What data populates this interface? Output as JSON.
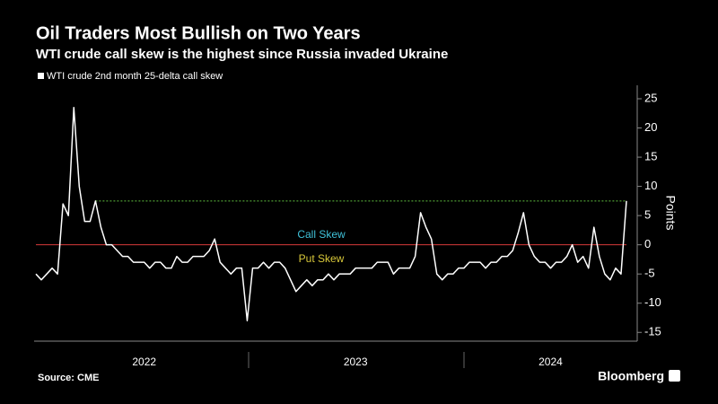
{
  "chart_data": {
    "type": "line",
    "title": "Oil Traders Most Bullish on Two Years",
    "subtitle": "WTI crude call skew is the highest since Russia invaded Ukraine",
    "y_label": "Points",
    "source": "Source: CME",
    "brand": "Bloomberg",
    "annotations": [
      {
        "text": "Call Skew",
        "color": "#3fc1d8"
      },
      {
        "text": "Put Skew",
        "color": "#d8c83a"
      }
    ],
    "reference_lines": [
      {
        "value": 0,
        "color": "#d83a3a"
      },
      {
        "value": 7.5,
        "color": "#5fbf3f"
      }
    ],
    "categories": [
      null,
      null,
      null,
      null,
      null,
      null,
      null,
      null,
      null,
      null,
      null,
      null,
      null,
      null,
      null,
      null,
      null,
      null,
      null,
      null,
      "2022",
      null,
      null,
      null,
      null,
      null,
      null,
      null,
      null,
      null,
      null,
      null,
      null,
      null,
      null,
      null,
      null,
      null,
      null,
      null,
      null,
      null,
      null,
      null,
      null,
      null,
      null,
      null,
      null,
      null,
      null,
      null,
      null,
      null,
      null,
      null,
      null,
      null,
      null,
      "2023",
      null,
      null,
      null,
      null,
      null,
      null,
      null,
      null,
      null,
      null,
      null,
      null,
      null,
      null,
      null,
      null,
      null,
      null,
      null,
      null,
      null,
      null,
      null,
      null,
      null,
      null,
      null,
      null,
      null,
      null,
      null,
      null,
      null,
      null,
      null,
      "2024",
      null,
      null,
      null,
      null,
      null,
      null,
      null,
      null,
      null,
      null,
      null,
      null,
      null,
      null
    ],
    "series": [
      {
        "name": "WTI crude 2nd month 25-delta call skew",
        "color": "#ffffff",
        "values": [
          -5,
          -6,
          -5,
          -4,
          -5,
          7,
          5,
          23.5,
          10,
          4,
          4,
          7.5,
          3,
          0,
          0,
          -1,
          -2,
          -2,
          -3,
          -3,
          -3,
          -4,
          -3,
          -3,
          -4,
          -4,
          -2,
          -3,
          -3,
          -2,
          -2,
          -2,
          -1,
          1,
          -3,
          -4,
          -5,
          -4,
          -4,
          -13,
          -4,
          -4,
          -3,
          -4,
          -3,
          -3,
          -4,
          -6,
          -8,
          -7,
          -6,
          -7,
          -6,
          -6,
          -5,
          -6,
          -5,
          -5,
          -5,
          -4,
          -4,
          -4,
          -4,
          -3,
          -3,
          -3,
          -5,
          -4,
          -4,
          -4,
          -2,
          5.5,
          3,
          1,
          -5,
          -6,
          -5,
          -5,
          -4,
          -4,
          -3,
          -3,
          -3,
          -4,
          -3,
          -3,
          -2,
          -2,
          -1,
          2,
          5.5,
          0,
          -2,
          -3,
          -3,
          -4,
          -3,
          -3,
          -2,
          0,
          -3,
          -2,
          -4,
          3,
          -2,
          -5,
          -6,
          -4,
          -5,
          7.5
        ]
      }
    ],
    "ylim": [
      -16.5,
      27
    ],
    "yticks": [
      25,
      20,
      15,
      10,
      5,
      0,
      -5,
      -10,
      -15
    ]
  }
}
